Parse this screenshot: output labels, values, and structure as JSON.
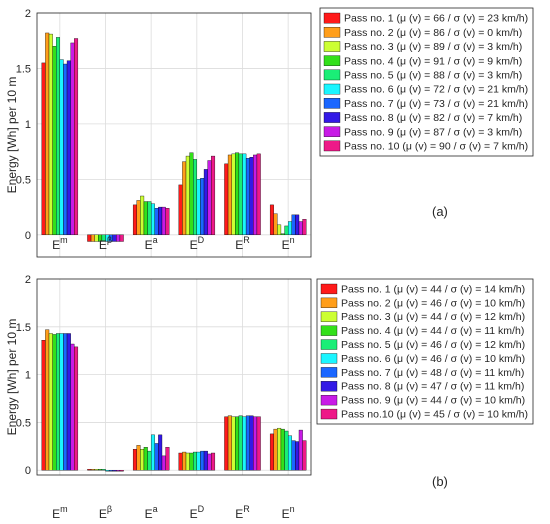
{
  "colors": [
    "#ff1a1a",
    "#ff9e1a",
    "#ccff33",
    "#33e01a",
    "#1aee77",
    "#1af5ff",
    "#1a66ff",
    "#3319e6",
    "#c81ae6",
    "#ee1a88"
  ],
  "panel_labels": [
    "(a)",
    "(b)"
  ],
  "chart_data": [
    {
      "type": "bar",
      "categories": [
        "E^m",
        "E^β",
        "E^a",
        "E^D",
        "E^R",
        "E^n"
      ],
      "ylabel": "Energy [Wh] per 10 m",
      "ylim": [
        -0.2,
        2
      ],
      "yticks": [
        0,
        0.5,
        1,
        1.5,
        2
      ],
      "ytick_labels": [
        "0",
        "0.5",
        "1",
        "1.5",
        "2"
      ],
      "grid": true,
      "legend_position": "right",
      "series": [
        {
          "name": "Pass no. 1 (μ (v) = 66 / σ (v) = 23 km/h)",
          "values": [
            1.55,
            -0.06,
            0.27,
            0.45,
            0.64,
            0.27
          ]
        },
        {
          "name": "Pass no. 2 (μ (v) = 86 / σ (v) = 0 km/h)",
          "values": [
            1.82,
            -0.06,
            0.31,
            0.66,
            0.72,
            0.19
          ]
        },
        {
          "name": "Pass no. 3 (μ (v) = 89 / σ (v) = 3 km/h)",
          "values": [
            1.81,
            -0.06,
            0.35,
            0.71,
            0.73,
            0.09
          ]
        },
        {
          "name": "Pass no. 4 (μ (v) = 91 / σ (v) = 9 km/h)",
          "values": [
            1.7,
            -0.06,
            0.3,
            0.74,
            0.74,
            0.01
          ]
        },
        {
          "name": "Pass no. 5 (μ (v) = 88 / σ (v) = 3 km/h)",
          "values": [
            1.78,
            -0.06,
            0.3,
            0.68,
            0.73,
            0.08
          ]
        },
        {
          "name": "Pass no. 6 (μ (v) = 72 / σ (v) = 21 km/h)",
          "values": [
            1.58,
            -0.06,
            0.28,
            0.5,
            0.73,
            0.12
          ]
        },
        {
          "name": "Pass no. 7 (μ (v) = 73 / σ (v) = 21 km/h)",
          "values": [
            1.54,
            -0.06,
            0.24,
            0.51,
            0.69,
            0.18
          ]
        },
        {
          "name": "Pass no. 8 (μ (v) = 82 / σ (v) = 7 km/h)",
          "values": [
            1.57,
            -0.06,
            0.25,
            0.59,
            0.7,
            0.18
          ]
        },
        {
          "name": "Pass no. 9 (μ (v) = 87 / σ (v) = 3 km/h)",
          "values": [
            1.73,
            -0.06,
            0.25,
            0.67,
            0.72,
            0.12
          ]
        },
        {
          "name": "Pass no. 10 (μ (v) = 90 / σ (v) = 7 km/h)",
          "values": [
            1.77,
            -0.06,
            0.24,
            0.71,
            0.73,
            0.14
          ]
        }
      ]
    },
    {
      "type": "bar",
      "categories": [
        "E^m",
        "E^β",
        "E^a",
        "E^D",
        "E^R",
        "E^n"
      ],
      "ylabel": "Energy [Wh] per 10 m",
      "ylim": [
        -0.05,
        2
      ],
      "yticks": [
        0,
        0.5,
        1,
        1.5,
        2
      ],
      "ytick_labels": [
        "0",
        "0.5",
        "1",
        "1.5",
        "2"
      ],
      "grid": true,
      "legend_position": "right",
      "series": [
        {
          "name": "Pass no. 1 (μ (v) = 44 / σ (v) = 14 km/h)",
          "values": [
            1.36,
            0.01,
            0.22,
            0.18,
            0.56,
            0.38
          ]
        },
        {
          "name": "Pass no. 2 (μ (v) = 46 / σ (v) = 10 km/h)",
          "values": [
            1.47,
            0.01,
            0.26,
            0.19,
            0.57,
            0.43
          ]
        },
        {
          "name": "Pass no. 3 (μ (v) = 44 / σ (v) = 12 km/h)",
          "values": [
            1.43,
            0.01,
            0.22,
            0.18,
            0.56,
            0.44
          ]
        },
        {
          "name": "Pass no. 4 (μ (v) = 44 / σ (v) = 11 km/h)",
          "values": [
            1.42,
            0.01,
            0.24,
            0.18,
            0.56,
            0.43
          ]
        },
        {
          "name": "Pass no. 5 (μ (v) = 46 / σ (v) = 12 km/h)",
          "values": [
            1.43,
            0.01,
            0.2,
            0.19,
            0.57,
            0.41
          ]
        },
        {
          "name": "Pass no. 6 (μ (v) = 46 / σ (v) = 10 km/h)",
          "values": [
            1.43,
            -0.01,
            0.37,
            0.19,
            0.56,
            0.36
          ]
        },
        {
          "name": "Pass no. 7 (μ (v) = 48 / σ (v) = 11 km/h)",
          "values": [
            1.43,
            -0.01,
            0.28,
            0.2,
            0.57,
            0.31
          ]
        },
        {
          "name": "Pass no. 8 (μ (v) = 47 / σ (v) = 11 km/h)",
          "values": [
            1.43,
            -0.01,
            0.37,
            0.2,
            0.57,
            0.3
          ]
        },
        {
          "name": "Pass no. 9 (μ (v) = 44 / σ (v) = 10 km/h)",
          "values": [
            1.32,
            -0.01,
            0.15,
            0.17,
            0.56,
            0.42
          ]
        },
        {
          "name": "Pass no.10 (μ (v) = 45 / σ (v) = 10 km/h)",
          "values": [
            1.29,
            -0.01,
            0.24,
            0.18,
            0.56,
            0.31
          ]
        }
      ]
    }
  ]
}
